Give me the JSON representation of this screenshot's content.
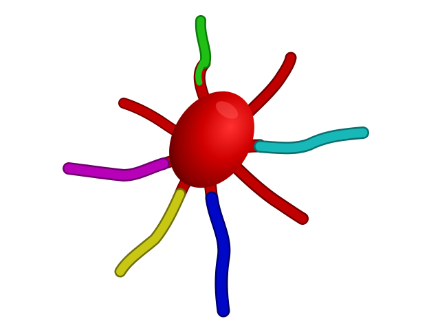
{
  "scene": {
    "subject": "segmented-tentacled-body",
    "background": "#ffffff"
  },
  "colors": {
    "body": "#c80000",
    "leg_green": "#1fbf16",
    "leg_cyan": "#18b8b8",
    "leg_magenta": "#b800b8",
    "leg_yellow": "#c8c814",
    "leg_blue": "#0008c8",
    "leg_red": "#c00000"
  },
  "limbs": [
    {
      "name": "leg-green",
      "color_key": "leg_green",
      "has_colored_segment": true
    },
    {
      "name": "leg-cyan",
      "color_key": "leg_cyan",
      "has_colored_segment": true
    },
    {
      "name": "leg-magenta",
      "color_key": "leg_magenta",
      "has_colored_segment": true
    },
    {
      "name": "leg-yellow",
      "color_key": "leg_yellow",
      "has_colored_segment": true
    },
    {
      "name": "leg-blue",
      "color_key": "leg_blue",
      "has_colored_segment": true
    },
    {
      "name": "leg-red-upper-right",
      "color_key": "leg_red",
      "has_colored_segment": false
    },
    {
      "name": "leg-red-upper-left",
      "color_key": "leg_red",
      "has_colored_segment": false
    },
    {
      "name": "leg-red-lower-right",
      "color_key": "leg_red",
      "has_colored_segment": false
    }
  ]
}
